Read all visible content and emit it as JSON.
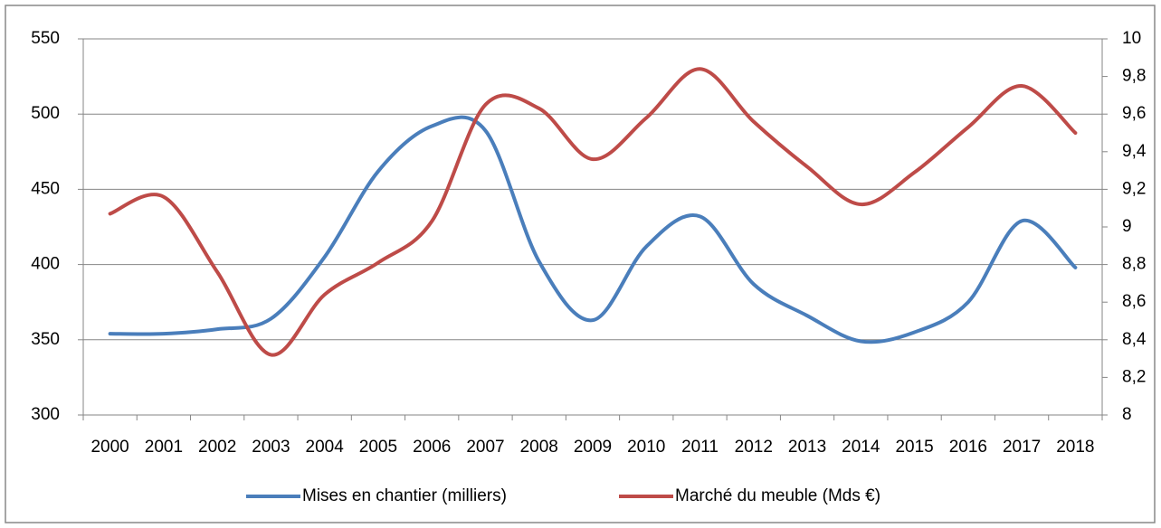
{
  "chart_data": {
    "type": "line",
    "categories": [
      "2000",
      "2001",
      "2002",
      "2003",
      "2004",
      "2005",
      "2006",
      "2007",
      "2008",
      "2009",
      "2010",
      "2011",
      "2012",
      "2013",
      "2014",
      "2015",
      "2016",
      "2017",
      "2018"
    ],
    "series": [
      {
        "name": "Mises en chantier (milliers)",
        "color": "#4a7ebb",
        "values": [
          354,
          354,
          357,
          364,
          405,
          462,
          492,
          489,
          402,
          363,
          412,
          432,
          387,
          366,
          349,
          355,
          375,
          429,
          398
        ]
      },
      {
        "name": "Marché du meuble (Mds €)",
        "color": "#be4b48",
        "axis": "y2",
        "values": [
          9.07,
          9.16,
          8.76,
          8.32,
          8.64,
          8.81,
          9.03,
          9.65,
          9.63,
          9.36,
          9.58,
          9.84,
          9.56,
          9.32,
          9.12,
          9.29,
          9.53,
          9.75,
          9.5
        ]
      }
    ],
    "ylim": [
      300,
      550
    ],
    "yticks": [
      300,
      350,
      400,
      450,
      500,
      550
    ],
    "y2lim": [
      8,
      10
    ],
    "y2ticks": [
      8,
      {
        "value": 8.2,
        "label": "8,2"
      },
      {
        "value": 8.4,
        "label": "8,4"
      },
      {
        "value": 8.6,
        "label": "8,6"
      },
      {
        "value": 8.8,
        "label": "8,8"
      },
      9,
      {
        "value": 9.2,
        "label": "9,2"
      },
      {
        "value": 9.4,
        "label": "9,4"
      },
      {
        "value": 9.6,
        "label": "9,6"
      },
      {
        "value": 9.8,
        "label": "9,8"
      },
      10
    ],
    "grid": true,
    "legend": "bottom",
    "smooth": true
  }
}
